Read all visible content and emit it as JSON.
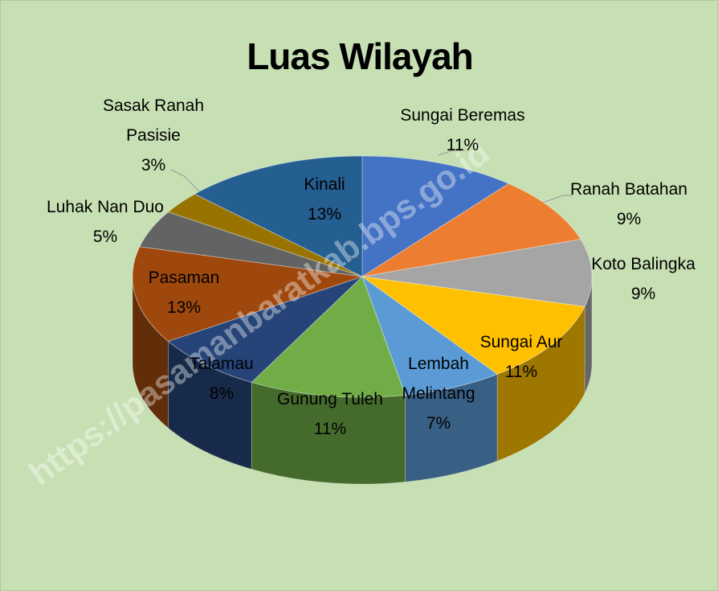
{
  "chart_data": {
    "type": "pie",
    "title": "Luas Wilayah",
    "categories": [
      "Sungai Beremas",
      "Ranah Batahan",
      "Koto Balingka",
      "Sungai Aur",
      "Lembah Melintang",
      "Gunung Tuleh",
      "Talamau",
      "Pasaman",
      "Luhak Nan Duo",
      "Sasak Ranah Pasisie",
      "Kinali"
    ],
    "values": [
      11,
      9,
      9,
      11,
      7,
      11,
      8,
      13,
      5,
      3,
      13
    ],
    "value_labels": [
      "11%",
      "9%",
      "9%",
      "11%",
      "7%",
      "11%",
      "8%",
      "13%",
      "5%",
      "3%",
      "13%"
    ],
    "colors": [
      "#4472c4",
      "#ed7d31",
      "#a5a5a5",
      "#ffc000",
      "#5b9bd5",
      "#70ad47",
      "#264478",
      "#9e480e",
      "#636363",
      "#997300",
      "#255e91"
    ],
    "watermark": "https://pasamanbaratkab.bps.go.id"
  }
}
